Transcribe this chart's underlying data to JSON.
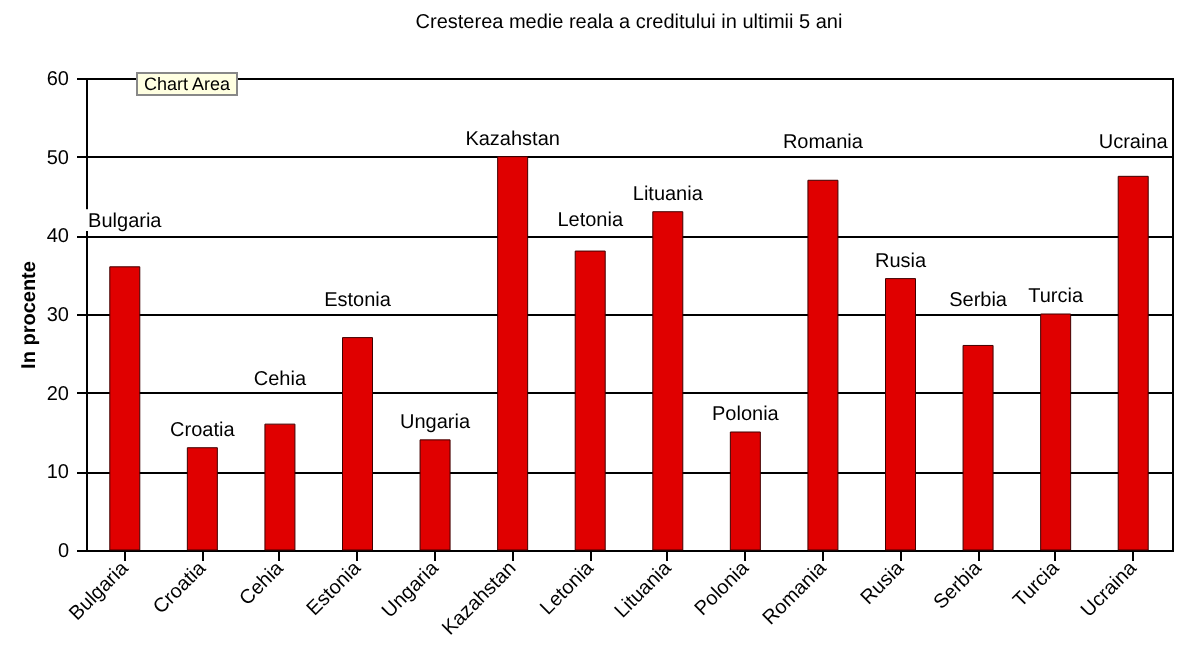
{
  "chart_data": {
    "type": "bar",
    "title": "Cresterea medie reala a creditului in ultimii 5 ani",
    "ylabel": "In procente",
    "categories": [
      "Bulgaria",
      "Croatia",
      "Cehia",
      "Estonia",
      "Ungaria",
      "Kazahstan",
      "Letonia",
      "Lituania",
      "Polonia",
      "Romania",
      "Rusia",
      "Serbia",
      "Turcia",
      "Ucraina"
    ],
    "values": [
      36,
      13,
      16,
      27,
      14,
      50,
      38,
      43,
      15,
      47,
      34.5,
      26,
      30,
      47.5
    ],
    "color": "#e00000",
    "ylim": [
      0,
      60
    ],
    "yticks": [
      0,
      10,
      20,
      30,
      40,
      50,
      60
    ],
    "grid": "y",
    "annotations": [
      "Chart Area"
    ]
  }
}
